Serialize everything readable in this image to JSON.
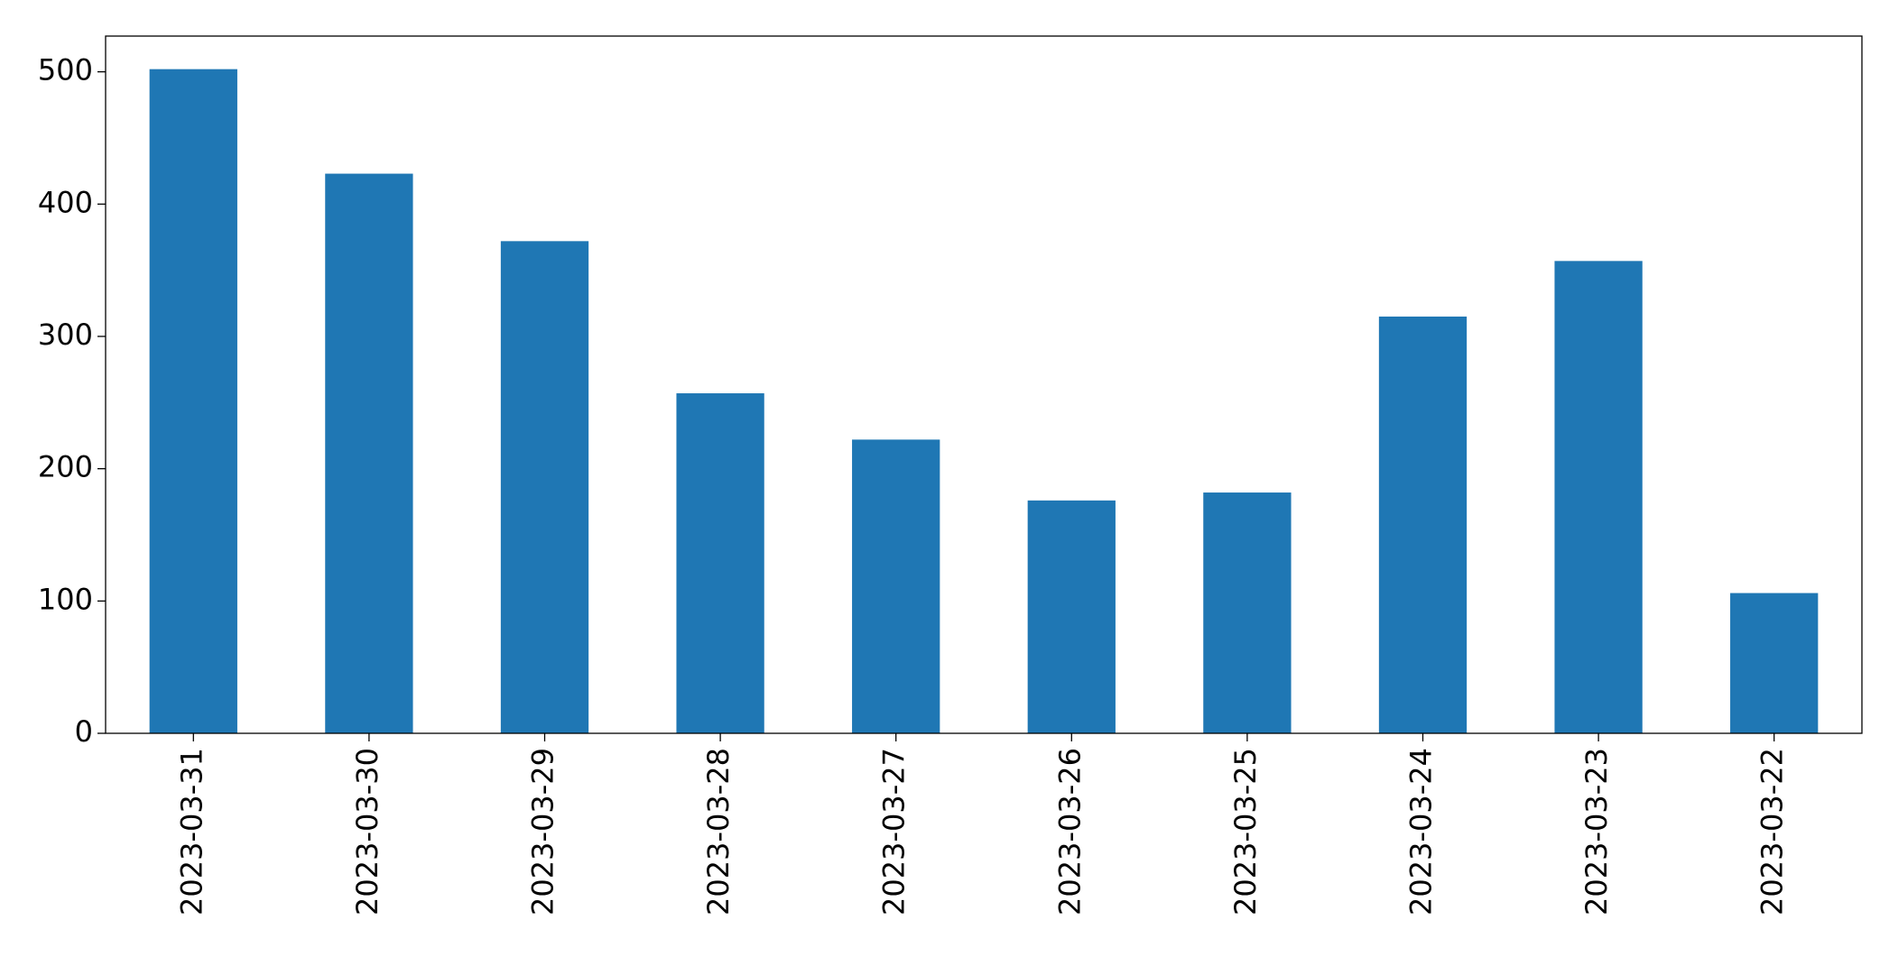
{
  "chart_data": {
    "type": "bar",
    "categories": [
      "2023-03-31",
      "2023-03-30",
      "2023-03-29",
      "2023-03-28",
      "2023-03-27",
      "2023-03-26",
      "2023-03-25",
      "2023-03-24",
      "2023-03-23",
      "2023-03-22"
    ],
    "values": [
      502,
      423,
      372,
      257,
      222,
      176,
      182,
      315,
      357,
      106
    ],
    "color": "#1f77b4",
    "ylim": [
      0,
      527
    ],
    "yticks": [
      0,
      100,
      200,
      300,
      400,
      500
    ],
    "grid": false
  }
}
